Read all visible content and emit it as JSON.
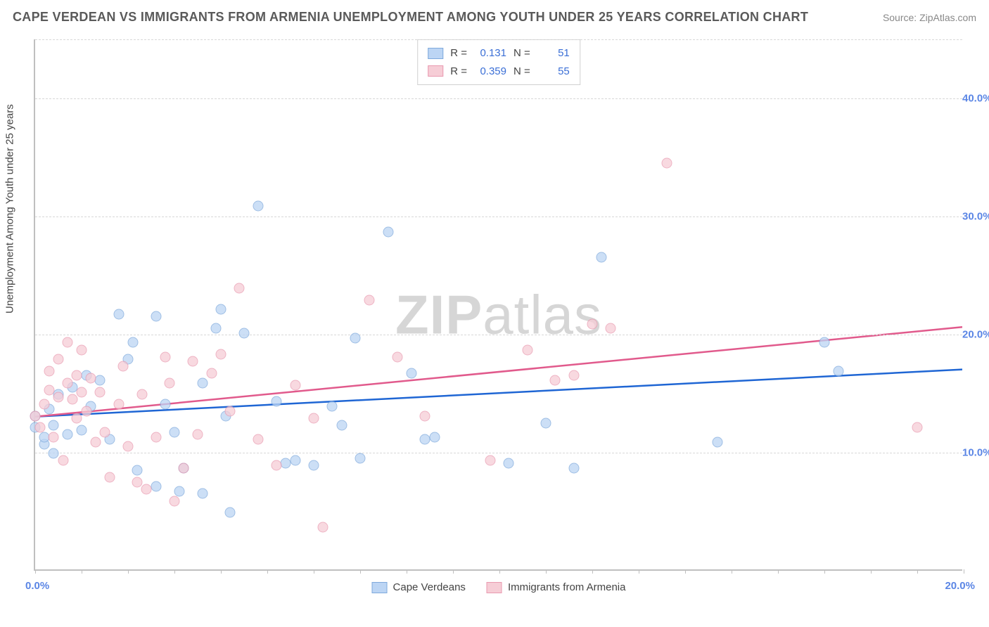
{
  "title": "CAPE VERDEAN VS IMMIGRANTS FROM ARMENIA UNEMPLOYMENT AMONG YOUTH UNDER 25 YEARS CORRELATION CHART",
  "source": "Source: ZipAtlas.com",
  "y_axis_label": "Unemployment Among Youth under 25 years",
  "watermark_bold": "ZIP",
  "watermark_rest": "atlas",
  "chart": {
    "type": "scatter",
    "xlim": [
      0,
      20
    ],
    "ylim": [
      0,
      45
    ],
    "x_ticks_minor_step": 1.0,
    "x_tick_labels": {
      "0": "0.0%",
      "20": "20.0%"
    },
    "y_gridlines": [
      10,
      20,
      30,
      40,
      45
    ],
    "y_tick_labels": {
      "10": "10.0%",
      "20": "20.0%",
      "30": "30.0%",
      "40": "40.0%"
    },
    "background_color": "#ffffff",
    "grid_color": "#d8d8d8",
    "axis_color": "#bfbfbf",
    "label_color": "#5b86e5",
    "series": [
      {
        "name": "Cape Verdeans",
        "color_fill": "#bcd5f4",
        "color_stroke": "#7ea9dc",
        "R": "0.131",
        "N": "51",
        "trend": {
          "x1": 0,
          "y1": 13.0,
          "x2": 20,
          "y2": 17.0,
          "color": "#1f66d4",
          "width": 2.5
        },
        "points": [
          [
            0.0,
            13.0
          ],
          [
            0.0,
            12.0
          ],
          [
            0.2,
            10.6
          ],
          [
            0.2,
            11.2
          ],
          [
            0.3,
            13.6
          ],
          [
            0.4,
            9.8
          ],
          [
            0.4,
            12.2
          ],
          [
            0.5,
            14.8
          ],
          [
            0.7,
            11.4
          ],
          [
            0.8,
            15.4
          ],
          [
            1.0,
            11.8
          ],
          [
            1.1,
            16.4
          ],
          [
            1.2,
            13.8
          ],
          [
            1.4,
            16.0
          ],
          [
            1.6,
            11.0
          ],
          [
            1.8,
            21.6
          ],
          [
            2.0,
            17.8
          ],
          [
            2.1,
            19.2
          ],
          [
            2.2,
            8.4
          ],
          [
            2.6,
            21.4
          ],
          [
            2.6,
            7.0
          ],
          [
            2.8,
            14.0
          ],
          [
            3.0,
            11.6
          ],
          [
            3.1,
            6.6
          ],
          [
            3.2,
            8.6
          ],
          [
            3.6,
            6.4
          ],
          [
            3.6,
            15.8
          ],
          [
            3.9,
            20.4
          ],
          [
            4.0,
            22.0
          ],
          [
            4.1,
            13.0
          ],
          [
            4.2,
            4.8
          ],
          [
            4.5,
            20.0
          ],
          [
            4.8,
            30.8
          ],
          [
            5.2,
            14.2
          ],
          [
            5.4,
            9.0
          ],
          [
            5.6,
            9.2
          ],
          [
            6.0,
            8.8
          ],
          [
            6.4,
            13.8
          ],
          [
            6.6,
            12.2
          ],
          [
            6.9,
            19.6
          ],
          [
            7.0,
            9.4
          ],
          [
            7.6,
            28.6
          ],
          [
            8.1,
            16.6
          ],
          [
            8.4,
            11.0
          ],
          [
            8.6,
            11.2
          ],
          [
            10.2,
            9.0
          ],
          [
            11.0,
            12.4
          ],
          [
            11.6,
            8.6
          ],
          [
            12.2,
            26.4
          ],
          [
            14.7,
            10.8
          ],
          [
            17.0,
            19.2
          ],
          [
            17.3,
            16.8
          ]
        ]
      },
      {
        "name": "Immigrants from Armenia",
        "color_fill": "#f6cdd6",
        "color_stroke": "#e99ab0",
        "R": "0.359",
        "N": "55",
        "trend": {
          "x1": 0,
          "y1": 13.0,
          "x2": 20,
          "y2": 20.6,
          "color": "#e15a8c",
          "width": 2.5
        },
        "points": [
          [
            0.0,
            13.0
          ],
          [
            0.1,
            12.0
          ],
          [
            0.2,
            14.0
          ],
          [
            0.3,
            15.2
          ],
          [
            0.3,
            16.8
          ],
          [
            0.4,
            11.2
          ],
          [
            0.5,
            17.8
          ],
          [
            0.5,
            14.6
          ],
          [
            0.6,
            9.2
          ],
          [
            0.7,
            19.2
          ],
          [
            0.7,
            15.8
          ],
          [
            0.8,
            14.4
          ],
          [
            0.9,
            16.4
          ],
          [
            0.9,
            12.8
          ],
          [
            1.0,
            18.6
          ],
          [
            1.0,
            15.0
          ],
          [
            1.1,
            13.4
          ],
          [
            1.2,
            16.2
          ],
          [
            1.3,
            10.8
          ],
          [
            1.4,
            15.0
          ],
          [
            1.5,
            11.6
          ],
          [
            1.6,
            7.8
          ],
          [
            1.8,
            14.0
          ],
          [
            1.9,
            17.2
          ],
          [
            2.0,
            10.4
          ],
          [
            2.2,
            7.4
          ],
          [
            2.3,
            14.8
          ],
          [
            2.4,
            6.8
          ],
          [
            2.6,
            11.2
          ],
          [
            2.8,
            18.0
          ],
          [
            2.9,
            15.8
          ],
          [
            3.0,
            5.8
          ],
          [
            3.2,
            8.6
          ],
          [
            3.4,
            17.6
          ],
          [
            3.5,
            11.4
          ],
          [
            3.8,
            16.6
          ],
          [
            4.0,
            18.2
          ],
          [
            4.2,
            13.4
          ],
          [
            4.4,
            23.8
          ],
          [
            4.8,
            11.0
          ],
          [
            5.2,
            8.8
          ],
          [
            5.6,
            15.6
          ],
          [
            6.0,
            12.8
          ],
          [
            6.2,
            3.6
          ],
          [
            7.2,
            22.8
          ],
          [
            7.8,
            18.0
          ],
          [
            8.4,
            13.0
          ],
          [
            9.8,
            9.2
          ],
          [
            10.6,
            18.6
          ],
          [
            11.2,
            16.0
          ],
          [
            11.6,
            16.4
          ],
          [
            12.0,
            20.8
          ],
          [
            12.4,
            20.4
          ],
          [
            13.6,
            34.4
          ],
          [
            19.0,
            12.0
          ]
        ]
      }
    ]
  },
  "legend_bottom": [
    {
      "label": "Cape Verdeans",
      "fill": "#bcd5f4",
      "stroke": "#7ea9dc"
    },
    {
      "label": "Immigrants from Armenia",
      "fill": "#f6cdd6",
      "stroke": "#e99ab0"
    }
  ]
}
